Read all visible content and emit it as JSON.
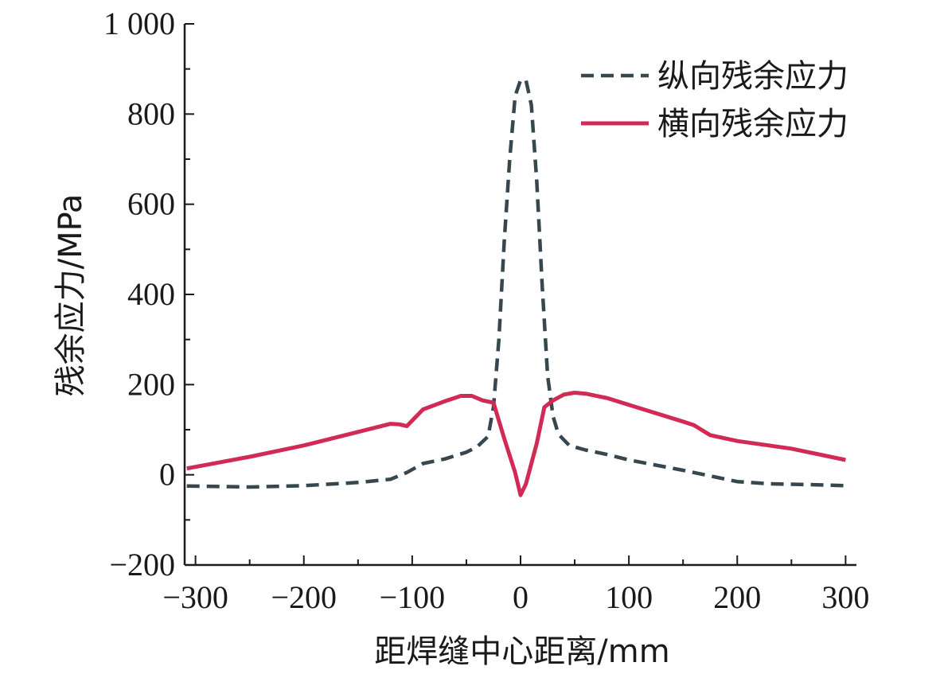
{
  "chart_data": {
    "type": "line",
    "xlabel": "距焊缝中心距离/mm",
    "ylabel": "残余应力/MPa",
    "xlim": [
      -310,
      310
    ],
    "ylim": [
      -200,
      1000
    ],
    "x_ticks": [
      -300,
      -200,
      -100,
      0,
      100,
      200,
      300
    ],
    "x_tick_labels": [
      "−300",
      "−200",
      "−100",
      "0",
      "100",
      "200",
      "300"
    ],
    "y_ticks": [
      -200,
      0,
      200,
      400,
      600,
      800,
      1000
    ],
    "y_tick_labels": [
      "−200",
      "0",
      "200",
      "400",
      "600",
      "800",
      "1 000"
    ],
    "grid": false,
    "legend_position": "top-right",
    "series": [
      {
        "name": "纵向残余应力",
        "style": "dashed",
        "color": "#37474f",
        "points": [
          [
            -308,
            -25
          ],
          [
            -250,
            -27
          ],
          [
            -200,
            -24
          ],
          [
            -150,
            -17
          ],
          [
            -120,
            -10
          ],
          [
            -105,
            5
          ],
          [
            -90,
            25
          ],
          [
            -70,
            35
          ],
          [
            -50,
            50
          ],
          [
            -40,
            62
          ],
          [
            -30,
            85
          ],
          [
            -25,
            150
          ],
          [
            -20,
            300
          ],
          [
            -15,
            520
          ],
          [
            -10,
            700
          ],
          [
            -5,
            840
          ],
          [
            0,
            875
          ],
          [
            5,
            875
          ],
          [
            10,
            820
          ],
          [
            15,
            650
          ],
          [
            20,
            420
          ],
          [
            25,
            220
          ],
          [
            30,
            130
          ],
          [
            35,
            90
          ],
          [
            45,
            65
          ],
          [
            60,
            55
          ],
          [
            80,
            45
          ],
          [
            100,
            33
          ],
          [
            150,
            10
          ],
          [
            180,
            -5
          ],
          [
            200,
            -15
          ],
          [
            230,
            -20
          ],
          [
            270,
            -22
          ],
          [
            300,
            -24
          ]
        ]
      },
      {
        "name": "横向残余应力",
        "style": "solid",
        "color": "#d12b55",
        "points": [
          [
            -308,
            14
          ],
          [
            -250,
            40
          ],
          [
            -200,
            65
          ],
          [
            -150,
            95
          ],
          [
            -120,
            113
          ],
          [
            -112,
            112
          ],
          [
            -105,
            108
          ],
          [
            -90,
            145
          ],
          [
            -70,
            163
          ],
          [
            -55,
            175
          ],
          [
            -45,
            175
          ],
          [
            -35,
            165
          ],
          [
            -25,
            160
          ],
          [
            -15,
            80
          ],
          [
            -5,
            5
          ],
          [
            0,
            -45
          ],
          [
            5,
            -20
          ],
          [
            15,
            70
          ],
          [
            22,
            150
          ],
          [
            30,
            165
          ],
          [
            40,
            178
          ],
          [
            50,
            182
          ],
          [
            60,
            180
          ],
          [
            80,
            170
          ],
          [
            100,
            155
          ],
          [
            150,
            118
          ],
          [
            160,
            110
          ],
          [
            175,
            88
          ],
          [
            200,
            75
          ],
          [
            250,
            58
          ],
          [
            300,
            33
          ]
        ]
      }
    ]
  }
}
